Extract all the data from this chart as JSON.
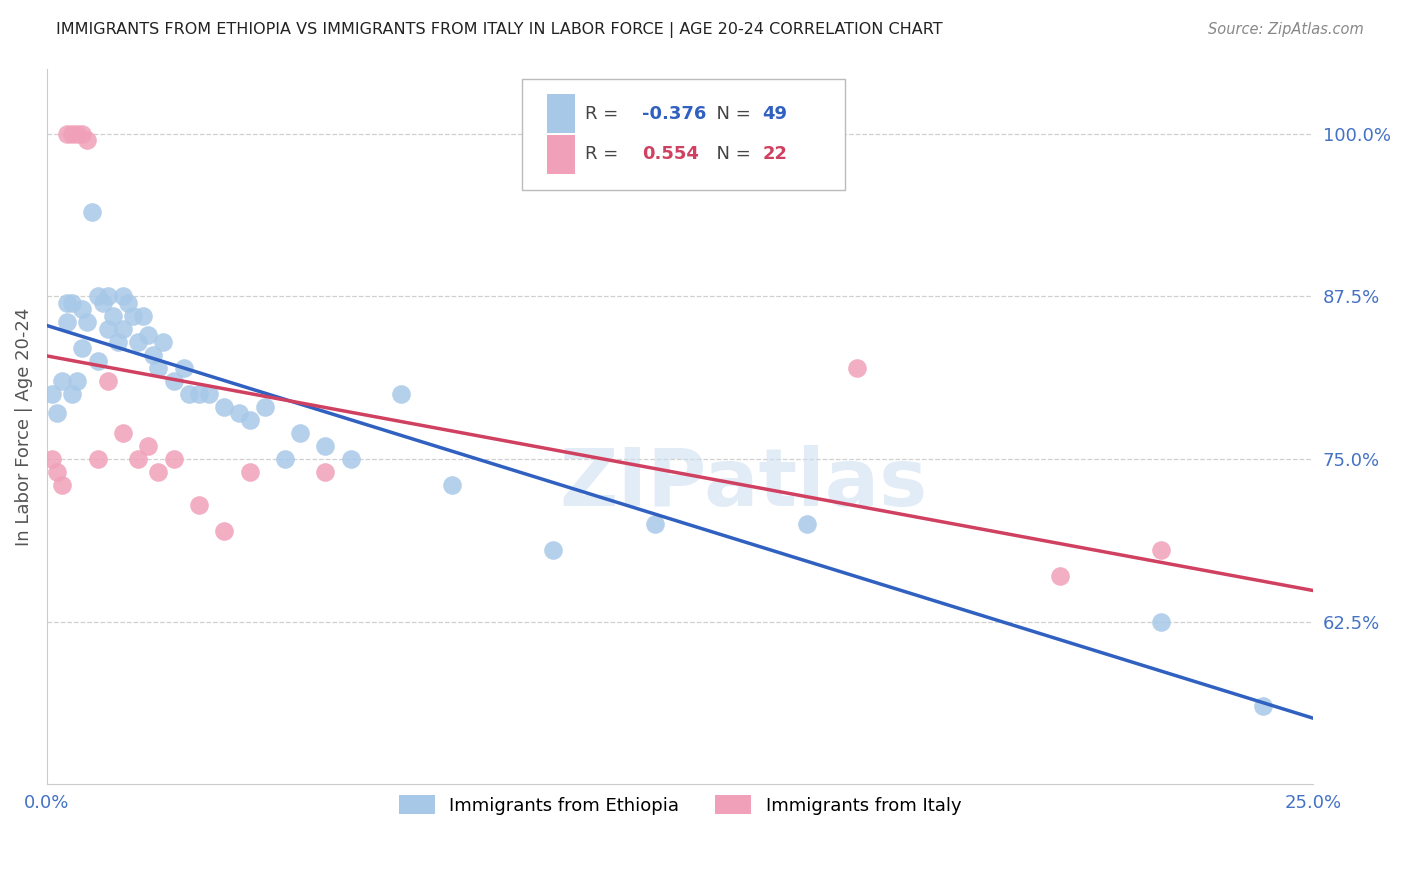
{
  "title": "IMMIGRANTS FROM ETHIOPIA VS IMMIGRANTS FROM ITALY IN LABOR FORCE | AGE 20-24 CORRELATION CHART",
  "source": "Source: ZipAtlas.com",
  "ylabel": "In Labor Force | Age 20-24",
  "xlim": [
    0.0,
    0.25
  ],
  "ylim": [
    0.5,
    1.05
  ],
  "xticks": [
    0.0,
    0.05,
    0.1,
    0.15,
    0.2,
    0.25
  ],
  "xtick_labels": [
    "0.0%",
    "",
    "",
    "",
    "",
    "25.0%"
  ],
  "ytick_labels_right": [
    "62.5%",
    "75.0%",
    "87.5%",
    "100.0%"
  ],
  "yticks_right": [
    0.625,
    0.75,
    0.875,
    1.0
  ],
  "grid_color": "#d0d0d0",
  "background_color": "#ffffff",
  "ethiopia_color": "#a8c8e8",
  "italy_color": "#f0a0b8",
  "ethiopia_line_color": "#3060c0",
  "italy_line_color": "#d04060",
  "legend_ethiopia_label": "Immigrants from Ethiopia",
  "legend_italy_label": "Immigrants from Italy",
  "ethiopia_R": "-0.376",
  "ethiopia_N": "49",
  "italy_R": "0.554",
  "italy_N": "22",
  "watermark": "ZIPatlas",
  "ethiopia_x": [
    0.001,
    0.002,
    0.003,
    0.004,
    0.004,
    0.005,
    0.005,
    0.006,
    0.007,
    0.007,
    0.008,
    0.009,
    0.01,
    0.01,
    0.011,
    0.012,
    0.012,
    0.013,
    0.014,
    0.015,
    0.015,
    0.016,
    0.017,
    0.018,
    0.019,
    0.02,
    0.021,
    0.022,
    0.023,
    0.025,
    0.027,
    0.028,
    0.03,
    0.032,
    0.035,
    0.038,
    0.04,
    0.043,
    0.047,
    0.05,
    0.055,
    0.06,
    0.07,
    0.08,
    0.1,
    0.12,
    0.15,
    0.22,
    0.24
  ],
  "ethiopia_y": [
    0.8,
    0.785,
    0.81,
    0.855,
    0.87,
    0.8,
    0.87,
    0.81,
    0.865,
    0.835,
    0.855,
    0.94,
    0.825,
    0.875,
    0.87,
    0.85,
    0.875,
    0.86,
    0.84,
    0.85,
    0.875,
    0.87,
    0.86,
    0.84,
    0.86,
    0.845,
    0.83,
    0.82,
    0.84,
    0.81,
    0.82,
    0.8,
    0.8,
    0.8,
    0.79,
    0.785,
    0.78,
    0.79,
    0.75,
    0.77,
    0.76,
    0.75,
    0.8,
    0.73,
    0.68,
    0.7,
    0.7,
    0.625,
    0.56
  ],
  "italy_x": [
    0.001,
    0.002,
    0.003,
    0.004,
    0.005,
    0.006,
    0.007,
    0.008,
    0.01,
    0.012,
    0.015,
    0.018,
    0.02,
    0.022,
    0.025,
    0.03,
    0.035,
    0.04,
    0.055,
    0.16,
    0.2,
    0.22
  ],
  "italy_y": [
    0.75,
    0.74,
    0.73,
    1.0,
    1.0,
    1.0,
    1.0,
    0.995,
    0.75,
    0.81,
    0.77,
    0.75,
    0.76,
    0.74,
    0.75,
    0.715,
    0.695,
    0.74,
    0.74,
    0.82,
    0.66,
    0.68
  ]
}
